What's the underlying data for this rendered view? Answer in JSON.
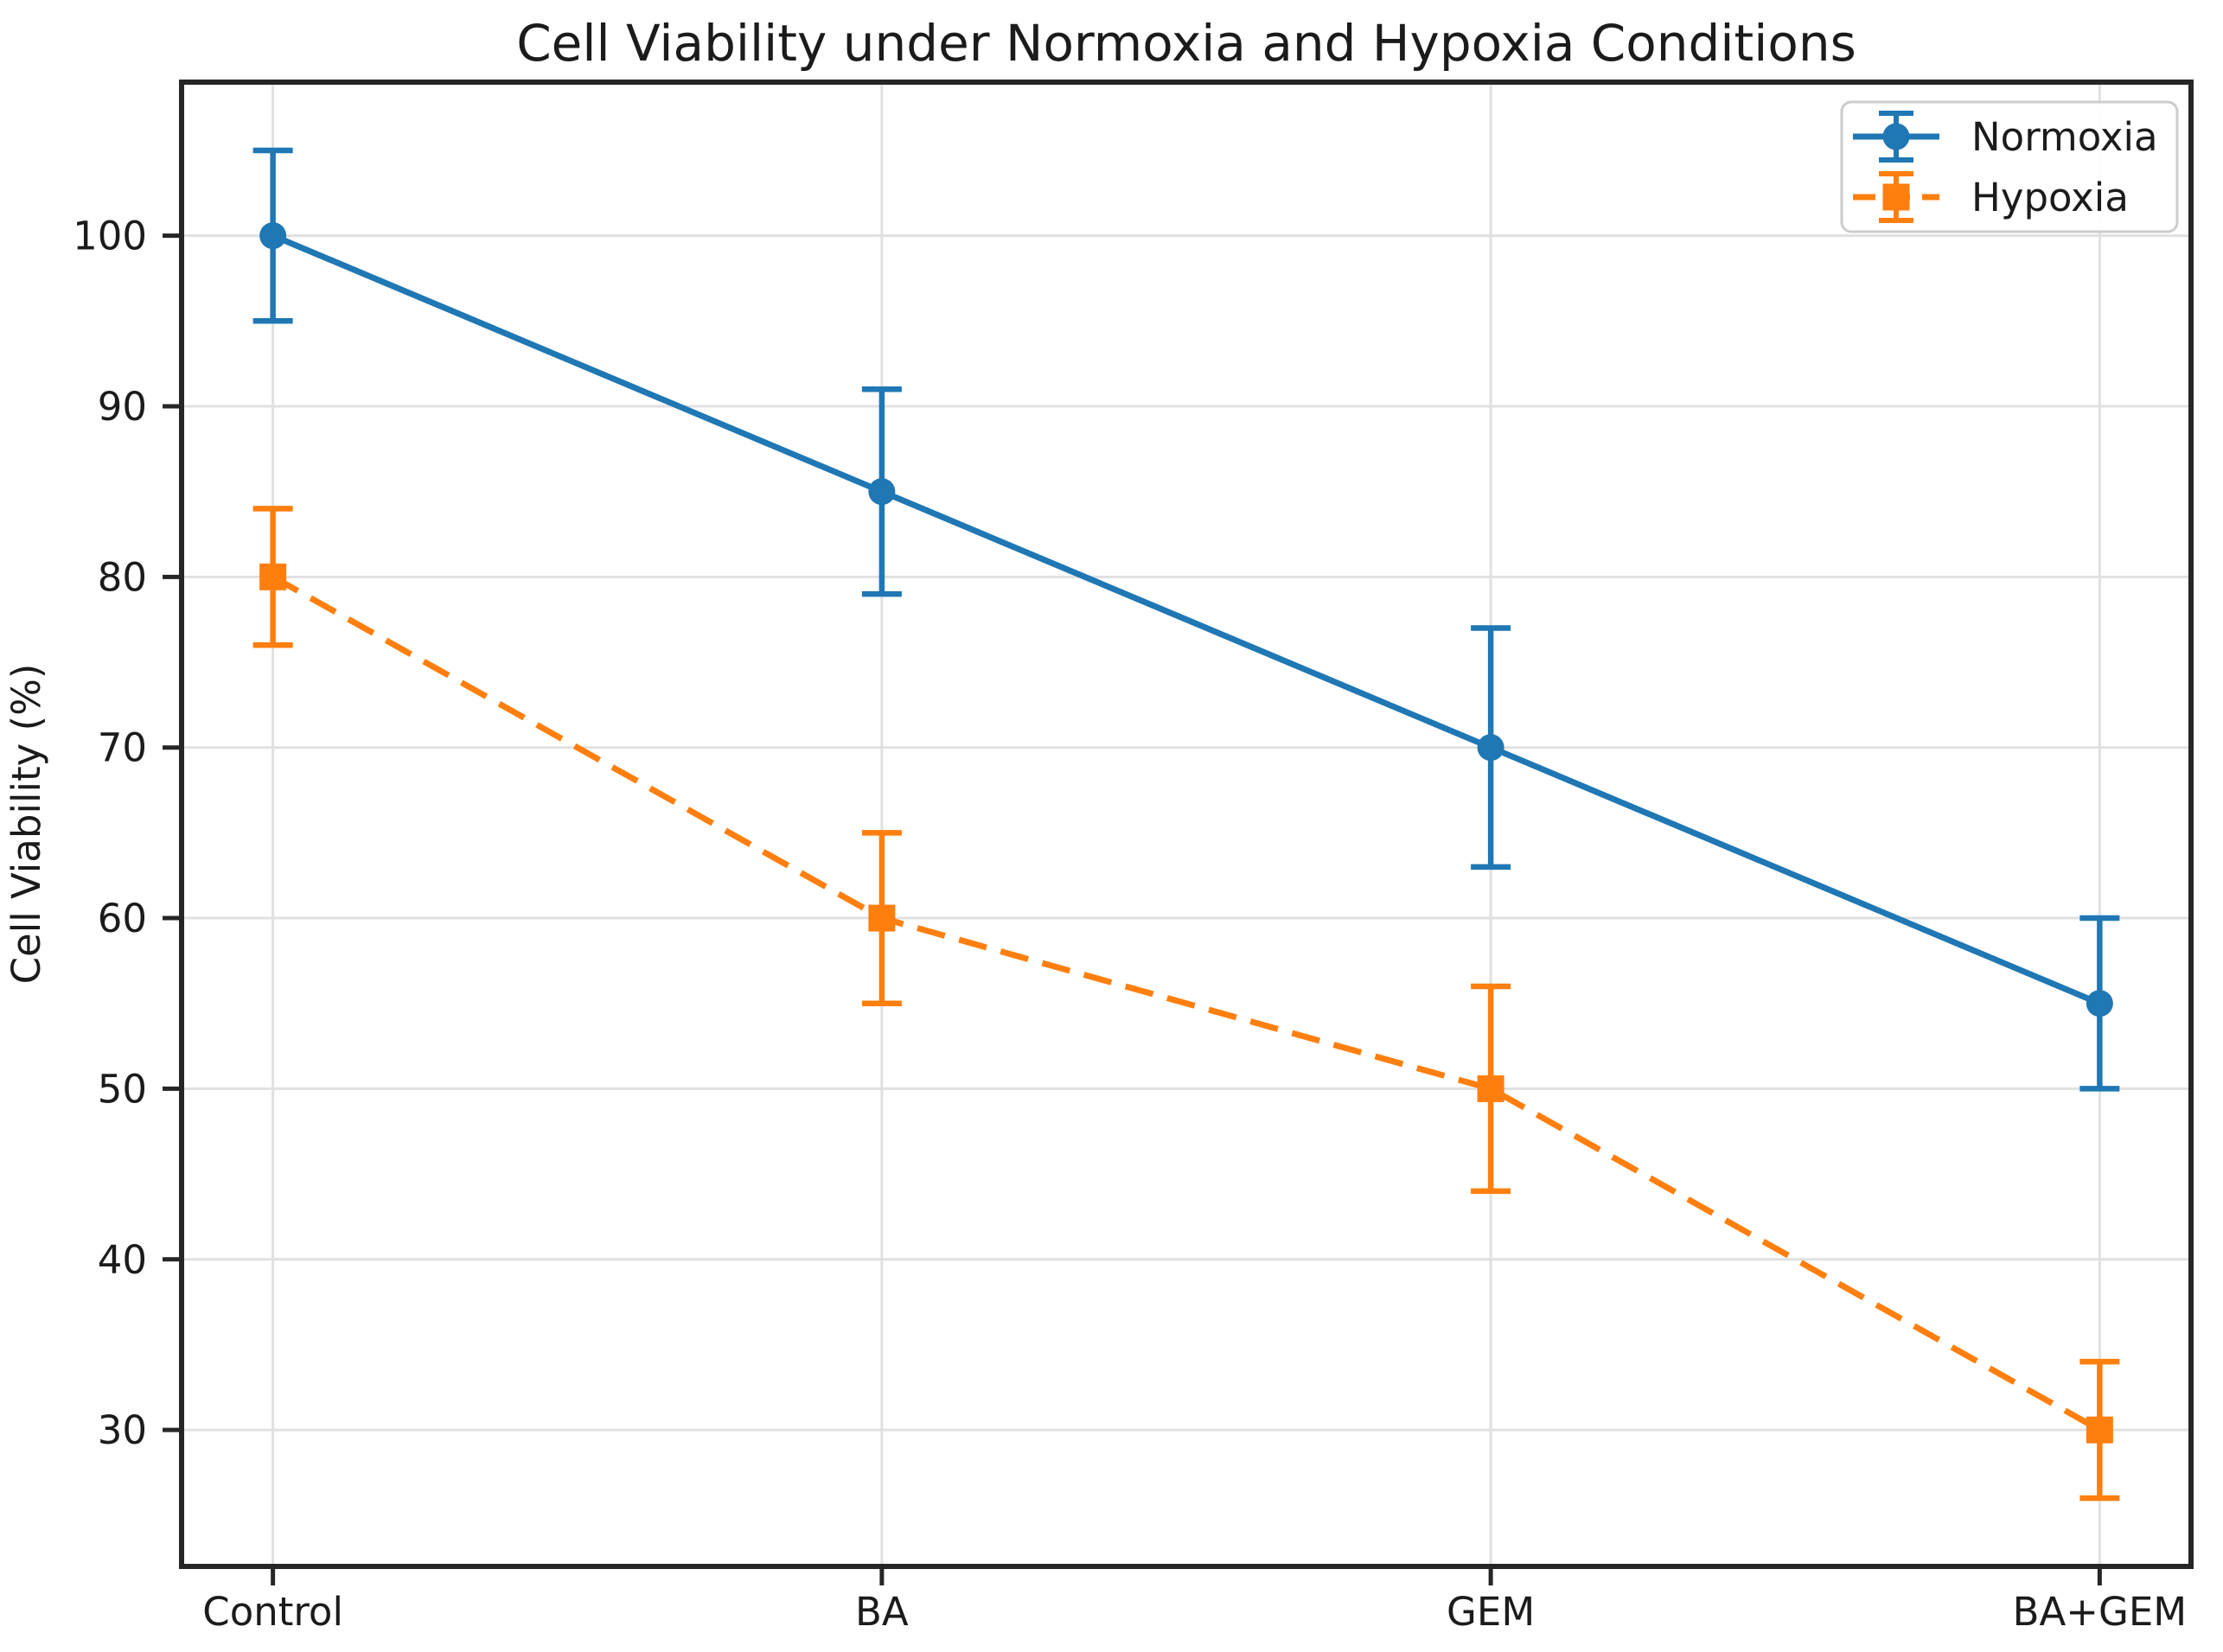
{
  "chart_data": {
    "type": "line",
    "title": "Cell Viability under Normoxia and Hypoxia Conditions",
    "xlabel": "",
    "ylabel": "Cell Viability (%)",
    "categories": [
      "Control",
      "BA",
      "GEM",
      "BA+GEM"
    ],
    "series": [
      {
        "name": "Normoxia",
        "color": "#1f77b4",
        "linestyle": "solid",
        "marker": "circle",
        "values": [
          100,
          85,
          70,
          55
        ],
        "errors": [
          5,
          6,
          7,
          5
        ]
      },
      {
        "name": "Hypoxia",
        "color": "#ff7f0e",
        "linestyle": "dashed",
        "marker": "square",
        "values": [
          80,
          60,
          50,
          30
        ],
        "errors": [
          4,
          5,
          6,
          4
        ]
      }
    ],
    "ylim": [
      22,
      109
    ],
    "yticks": [
      30,
      40,
      50,
      60,
      70,
      80,
      90,
      100
    ],
    "grid": true,
    "legend": {
      "position": "upper right",
      "entries": [
        "Normoxia",
        "Hypoxia"
      ]
    },
    "text_color": "#1b1b1b",
    "spine_color": "#262626",
    "grid_color": "#e0e0e0",
    "legend_border_color": "#cccccc"
  }
}
